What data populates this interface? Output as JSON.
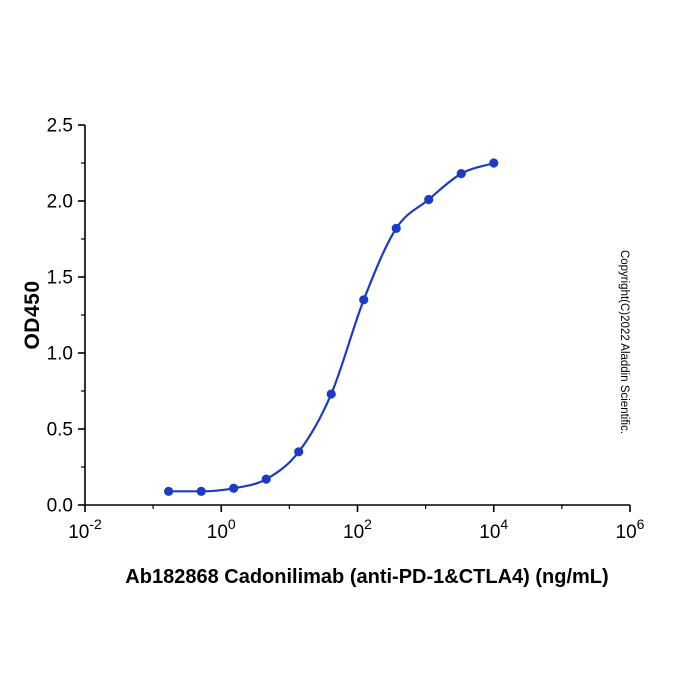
{
  "figure": {
    "background": "#ffffff",
    "axis_color": "#000000"
  },
  "chart_data": {
    "type": "scatter",
    "curve_style": "smooth sigmoid fit line through points",
    "title": "",
    "xlabel": "Ab182868 Cadonilimab (anti-PD-1&CTLA4) (ng/mL)",
    "ylabel": "OD450",
    "x_scale": "log10",
    "x_range_exponents": [
      -2,
      6
    ],
    "x_major_tick_exponents": [
      -2,
      0,
      2,
      4,
      6
    ],
    "x_minor_tick_exponents": [
      -1,
      1,
      3,
      5
    ],
    "ylim": [
      0,
      2.5
    ],
    "y_major_ticks": [
      0,
      0.5,
      1,
      1.5,
      2,
      2.5
    ],
    "y_minor_ticks": [
      0.25,
      0.75,
      1.25,
      1.75,
      2.25
    ],
    "grid": "off",
    "legend": "none",
    "series": [
      {
        "name": "Ab182868 Cadonilimab",
        "color": "#1e3bc3",
        "marker": "circle",
        "points": [
          {
            "x": 0.169,
            "y": 0.09
          },
          {
            "x": 0.508,
            "y": 0.09
          },
          {
            "x": 1.524,
            "y": 0.11
          },
          {
            "x": 4.572,
            "y": 0.17
          },
          {
            "x": 13.72,
            "y": 0.35
          },
          {
            "x": 41.15,
            "y": 0.73
          },
          {
            "x": 123.5,
            "y": 1.35
          },
          {
            "x": 370.4,
            "y": 1.82
          },
          {
            "x": 1111,
            "y": 2.01
          },
          {
            "x": 3333,
            "y": 2.18
          },
          {
            "x": 10000,
            "y": 2.25
          }
        ]
      }
    ],
    "watermark": "Copyright(C)2022 Aladdin Scientific."
  }
}
